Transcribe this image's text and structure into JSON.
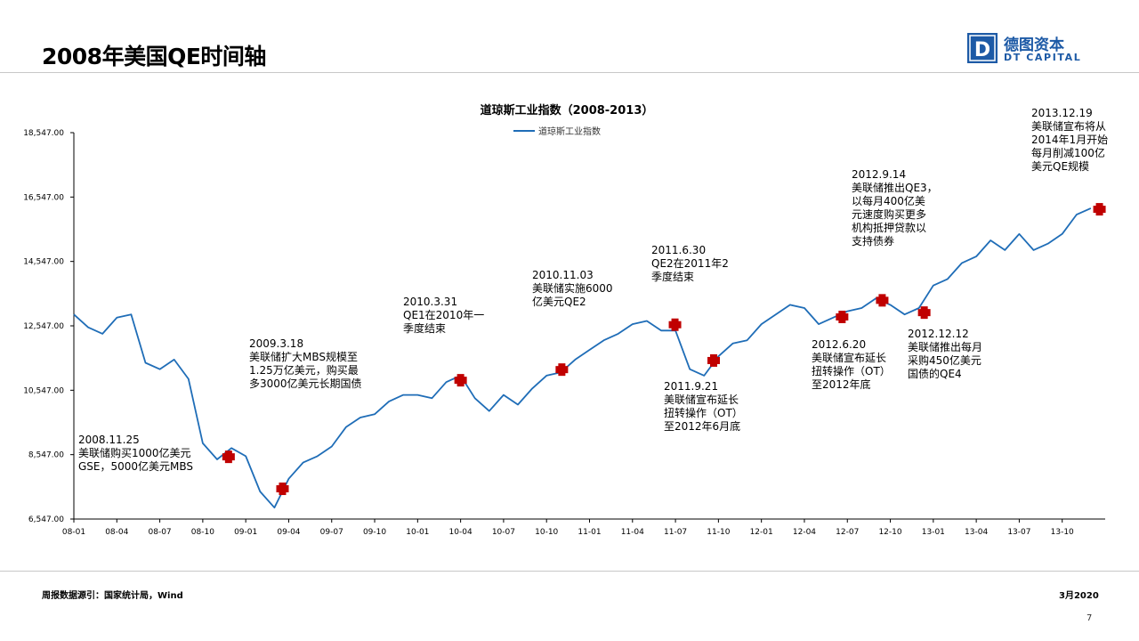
{
  "page": {
    "title": "2008年美国QE时间轴",
    "source": "周报数据源引：国家统计局，Wind",
    "date": "3月2020",
    "page_number": "7"
  },
  "logo": {
    "cn": "德图资本",
    "en": "DT CAPITAL",
    "mark_letter": "D",
    "color": "#1d5aa6"
  },
  "chart_data": {
    "type": "line",
    "title": "道琼斯工业指数（2008-2013）",
    "legend": "top-center",
    "grid": false,
    "ylim": [
      6547,
      18547
    ],
    "y_ticks": [
      6547,
      8547,
      10547,
      12547,
      14547,
      16547,
      18547
    ],
    "y_tick_labels": [
      "6,547.00",
      "8,547.00",
      "10,547.00",
      "12,547.00",
      "14,547.00",
      "16,547.00",
      "18,547.00"
    ],
    "x_ticks": [
      "08-01",
      "08-04",
      "08-07",
      "08-10",
      "09-01",
      "09-04",
      "09-07",
      "09-10",
      "10-01",
      "10-04",
      "10-07",
      "10-10",
      "11-01",
      "11-04",
      "11-07",
      "11-10",
      "12-01",
      "12-04",
      "12-07",
      "12-10",
      "13-01",
      "13-04",
      "13-07",
      "13-10"
    ],
    "xlim": [
      "2008-01",
      "2013-12"
    ],
    "color": "#1f6db7",
    "marker_color": "#c00000",
    "series": [
      {
        "name": "道琼斯工业指数",
        "x": [
          "2008-01",
          "2008-02",
          "2008-03",
          "2008-04",
          "2008-05",
          "2008-06",
          "2008-07",
          "2008-08",
          "2008-09",
          "2008-10",
          "2008-11",
          "2008-12",
          "2009-01",
          "2009-02",
          "2009-03",
          "2009-04",
          "2009-05",
          "2009-06",
          "2009-07",
          "2009-08",
          "2009-09",
          "2009-10",
          "2009-11",
          "2009-12",
          "2010-01",
          "2010-02",
          "2010-03",
          "2010-04",
          "2010-05",
          "2010-06",
          "2010-07",
          "2010-08",
          "2010-09",
          "2010-10",
          "2010-11",
          "2010-12",
          "2011-01",
          "2011-02",
          "2011-03",
          "2011-04",
          "2011-05",
          "2011-06",
          "2011-07",
          "2011-08",
          "2011-09",
          "2011-10",
          "2011-11",
          "2011-12",
          "2012-01",
          "2012-02",
          "2012-03",
          "2012-04",
          "2012-05",
          "2012-06",
          "2012-07",
          "2012-08",
          "2012-09",
          "2012-10",
          "2012-11",
          "2012-12",
          "2013-01",
          "2013-02",
          "2013-03",
          "2013-04",
          "2013-05",
          "2013-06",
          "2013-07",
          "2013-08",
          "2013-09",
          "2013-10",
          "2013-11",
          "2013-12"
        ],
        "values": [
          12900,
          12500,
          12300,
          12800,
          12900,
          11400,
          11200,
          11500,
          10900,
          8900,
          8400,
          8750,
          8500,
          7400,
          6900,
          7800,
          8300,
          8500,
          8800,
          9400,
          9700,
          9800,
          10200,
          10400,
          10400,
          10300,
          10800,
          11000,
          10300,
          9900,
          10400,
          10100,
          10600,
          11000,
          11100,
          11500,
          11800,
          12100,
          12300,
          12600,
          12700,
          12400,
          12400,
          11200,
          11000,
          11600,
          12000,
          12100,
          12600,
          12900,
          13200,
          13100,
          12600,
          12800,
          13000,
          13100,
          13400,
          13200,
          12900,
          13100,
          13800,
          14000,
          14500,
          14700,
          15200,
          14900,
          15400,
          14900,
          15100,
          15400,
          16000,
          16200
        ]
      }
    ],
    "events": [
      {
        "x": "2008-11-25",
        "value": 8479,
        "label": [
          "2008.11.25",
          "美联储购买1000亿美元",
          "GSE，5000亿美元MBS"
        ]
      },
      {
        "x": "2009-03-18",
        "value": 7486,
        "label": [
          "2009.3.18",
          "美联储扩大MBS规模至",
          "1.25万亿美元，购买最",
          "多3000亿美元长期国债"
        ]
      },
      {
        "x": "2010-03-31",
        "value": 10857,
        "label": [
          "2010.3.31",
          "QE1在2010年一",
          "季度结束"
        ]
      },
      {
        "x": "2010-11-03",
        "value": 11188,
        "label": [
          "2010.11.03",
          "美联储实施6000",
          "亿美元QE2"
        ]
      },
      {
        "x": "2011-06-30",
        "value": 12582,
        "label": [
          "2011.6.30",
          "QE2在2011年2",
          "季度结束"
        ]
      },
      {
        "x": "2011-09-21",
        "value": 11470,
        "label": [
          "2011.9.21",
          "美联储宣布延长",
          "扭转操作（OT）",
          "至2012年6月底"
        ]
      },
      {
        "x": "2012-06-20",
        "value": 12824,
        "label": [
          "2012.6.20",
          "美联储宣布延长",
          "扭转操作（OT）",
          "至2012年底"
        ]
      },
      {
        "x": "2012-09-14",
        "value": 13339,
        "label": [
          "2012.9.14",
          "美联储推出QE3，",
          "以每月400亿美",
          "元速度购买更多",
          "机构抵押贷款以",
          "支持债券"
        ]
      },
      {
        "x": "2012-12-12",
        "value": 12958,
        "label": [
          "2012.12.12",
          "美联储推出每月",
          "采购450亿美元",
          "国债的QE4"
        ]
      },
      {
        "x": "2013-12-19",
        "value": 16167,
        "label": [
          "2013.12.19",
          "美联储宣布将从",
          "2014年1月开始",
          "每月削减100亿",
          "美元QE规模"
        ]
      }
    ]
  }
}
